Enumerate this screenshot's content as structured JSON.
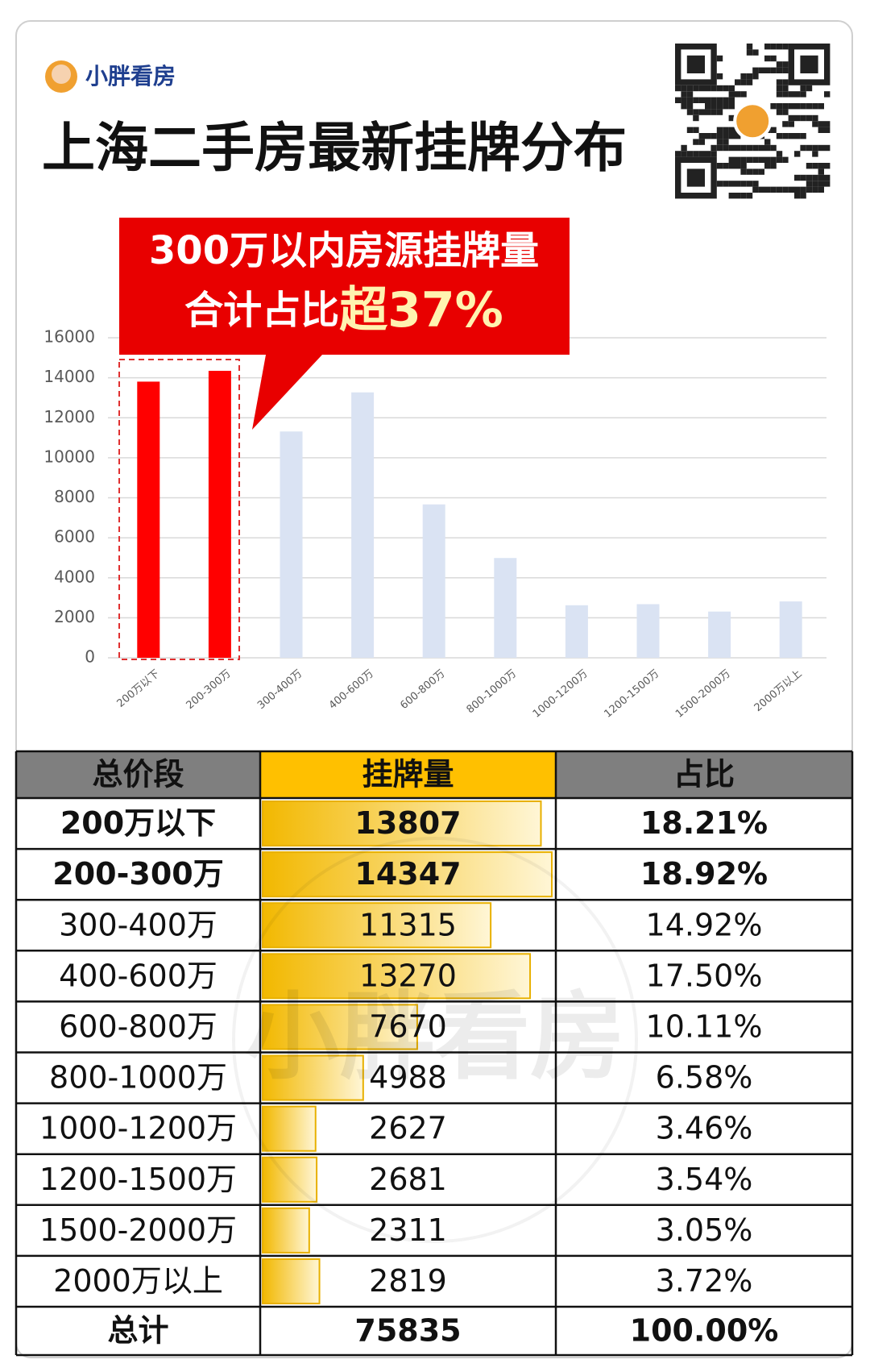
{
  "brand": "小胖看房",
  "chart_data": {
    "type": "bar",
    "title": "上海二手房最新挂牌分布",
    "annotation": [
      "300万以内房源挂牌量",
      "合计占比",
      "超37%"
    ],
    "categories": [
      "200万以下",
      "200-300万",
      "300-400万",
      "400-600万",
      "600-800万",
      "800-1000万",
      "1000-1200万",
      "1200-1500万",
      "1500-2000万",
      "2000万以上"
    ],
    "values": [
      13807,
      14347,
      11315,
      13270,
      7670,
      4988,
      2627,
      2681,
      2311,
      2819
    ],
    "colors": [
      "#ff0000",
      "#ff0000",
      "#dae3f3",
      "#dae3f3",
      "#dae3f3",
      "#dae3f3",
      "#dae3f3",
      "#dae3f3",
      "#dae3f3",
      "#dae3f3"
    ],
    "ylim": [
      0,
      16000
    ],
    "yticks": [
      0,
      2000,
      4000,
      6000,
      8000,
      10000,
      12000,
      14000,
      16000
    ],
    "grid": true
  },
  "table": {
    "header": [
      "总价段",
      "挂牌量",
      "占比"
    ],
    "rows": [
      [
        "200万以下",
        13807,
        "18.21%"
      ],
      [
        "200-300万",
        14347,
        "18.92%"
      ],
      [
        "300-400万",
        11315,
        "14.92%"
      ],
      [
        "400-600万",
        13270,
        "17.50%"
      ],
      [
        "600-800万",
        7670,
        "10.11%"
      ],
      [
        "800-1000万",
        4988,
        "6.58%"
      ],
      [
        "1000-1200万",
        2627,
        "3.46%"
      ],
      [
        "1200-1500万",
        2681,
        "3.54%"
      ],
      [
        "1500-2000万",
        2311,
        "3.05%"
      ],
      [
        "2000万以上",
        2819,
        "3.72%"
      ]
    ],
    "total": [
      "总计",
      75835,
      "100.00%"
    ]
  },
  "watermark": "小胖看房"
}
